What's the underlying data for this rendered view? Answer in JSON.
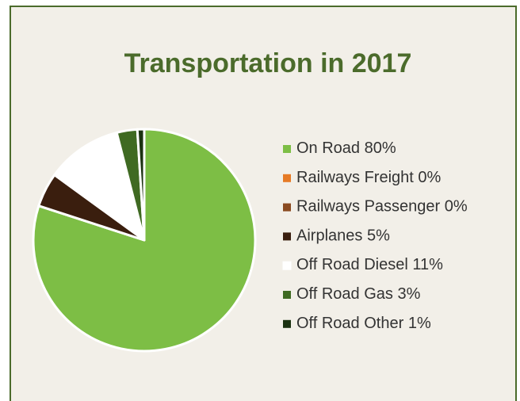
{
  "chart_data": {
    "type": "pie",
    "title": "Transportation in 2017",
    "categories": [
      "On Road",
      "Railways Freight",
      "Railways Passenger",
      "Airplanes",
      "Off Road Diesel",
      "Off Road Gas",
      "Off Road Other"
    ],
    "values": [
      80,
      0,
      0,
      5,
      11,
      3,
      1
    ],
    "value_labels": [
      "80%",
      "0%",
      "0%",
      "5%",
      "11%",
      "3%",
      "1%"
    ],
    "colors": [
      "#7dbe45",
      "#e67a25",
      "#8a4a20",
      "#3a1e0e",
      "#ffffff",
      "#3f6a22",
      "#1b3211"
    ]
  }
}
